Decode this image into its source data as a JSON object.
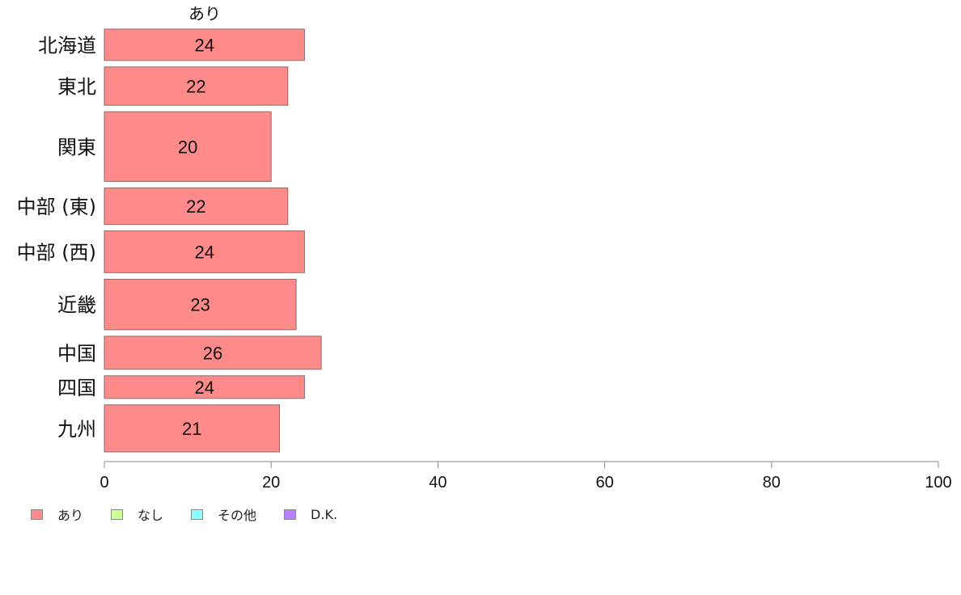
{
  "chart_data": {
    "type": "bar",
    "orientation": "horizontal",
    "panel_label": "あり",
    "categories": [
      "北海道",
      "東北",
      "関東",
      "中部 (東)",
      "中部 (西)",
      "近畿",
      "中国",
      "四国",
      "九州"
    ],
    "series": [
      {
        "name": "あり",
        "values": [
          24,
          22,
          20,
          22,
          24,
          23,
          26,
          24,
          21
        ],
        "color": "#FF8A8A"
      }
    ],
    "bar_widths_relative": [
      0.9,
      1.1,
      2.0,
      1.05,
      1.2,
      1.45,
      0.95,
      0.65,
      1.35
    ],
    "xlim": [
      0,
      100
    ],
    "xticks": [
      0,
      20,
      40,
      60,
      80,
      100
    ],
    "legend": {
      "position": "bottom-left",
      "items": [
        {
          "label": "あり",
          "color": "#FF8A8A"
        },
        {
          "label": "なし",
          "color": "#CCFF99"
        },
        {
          "label": "その他",
          "color": "#88FFFF"
        },
        {
          "label": "D.K.",
          "color": "#B57FFF"
        }
      ]
    }
  }
}
